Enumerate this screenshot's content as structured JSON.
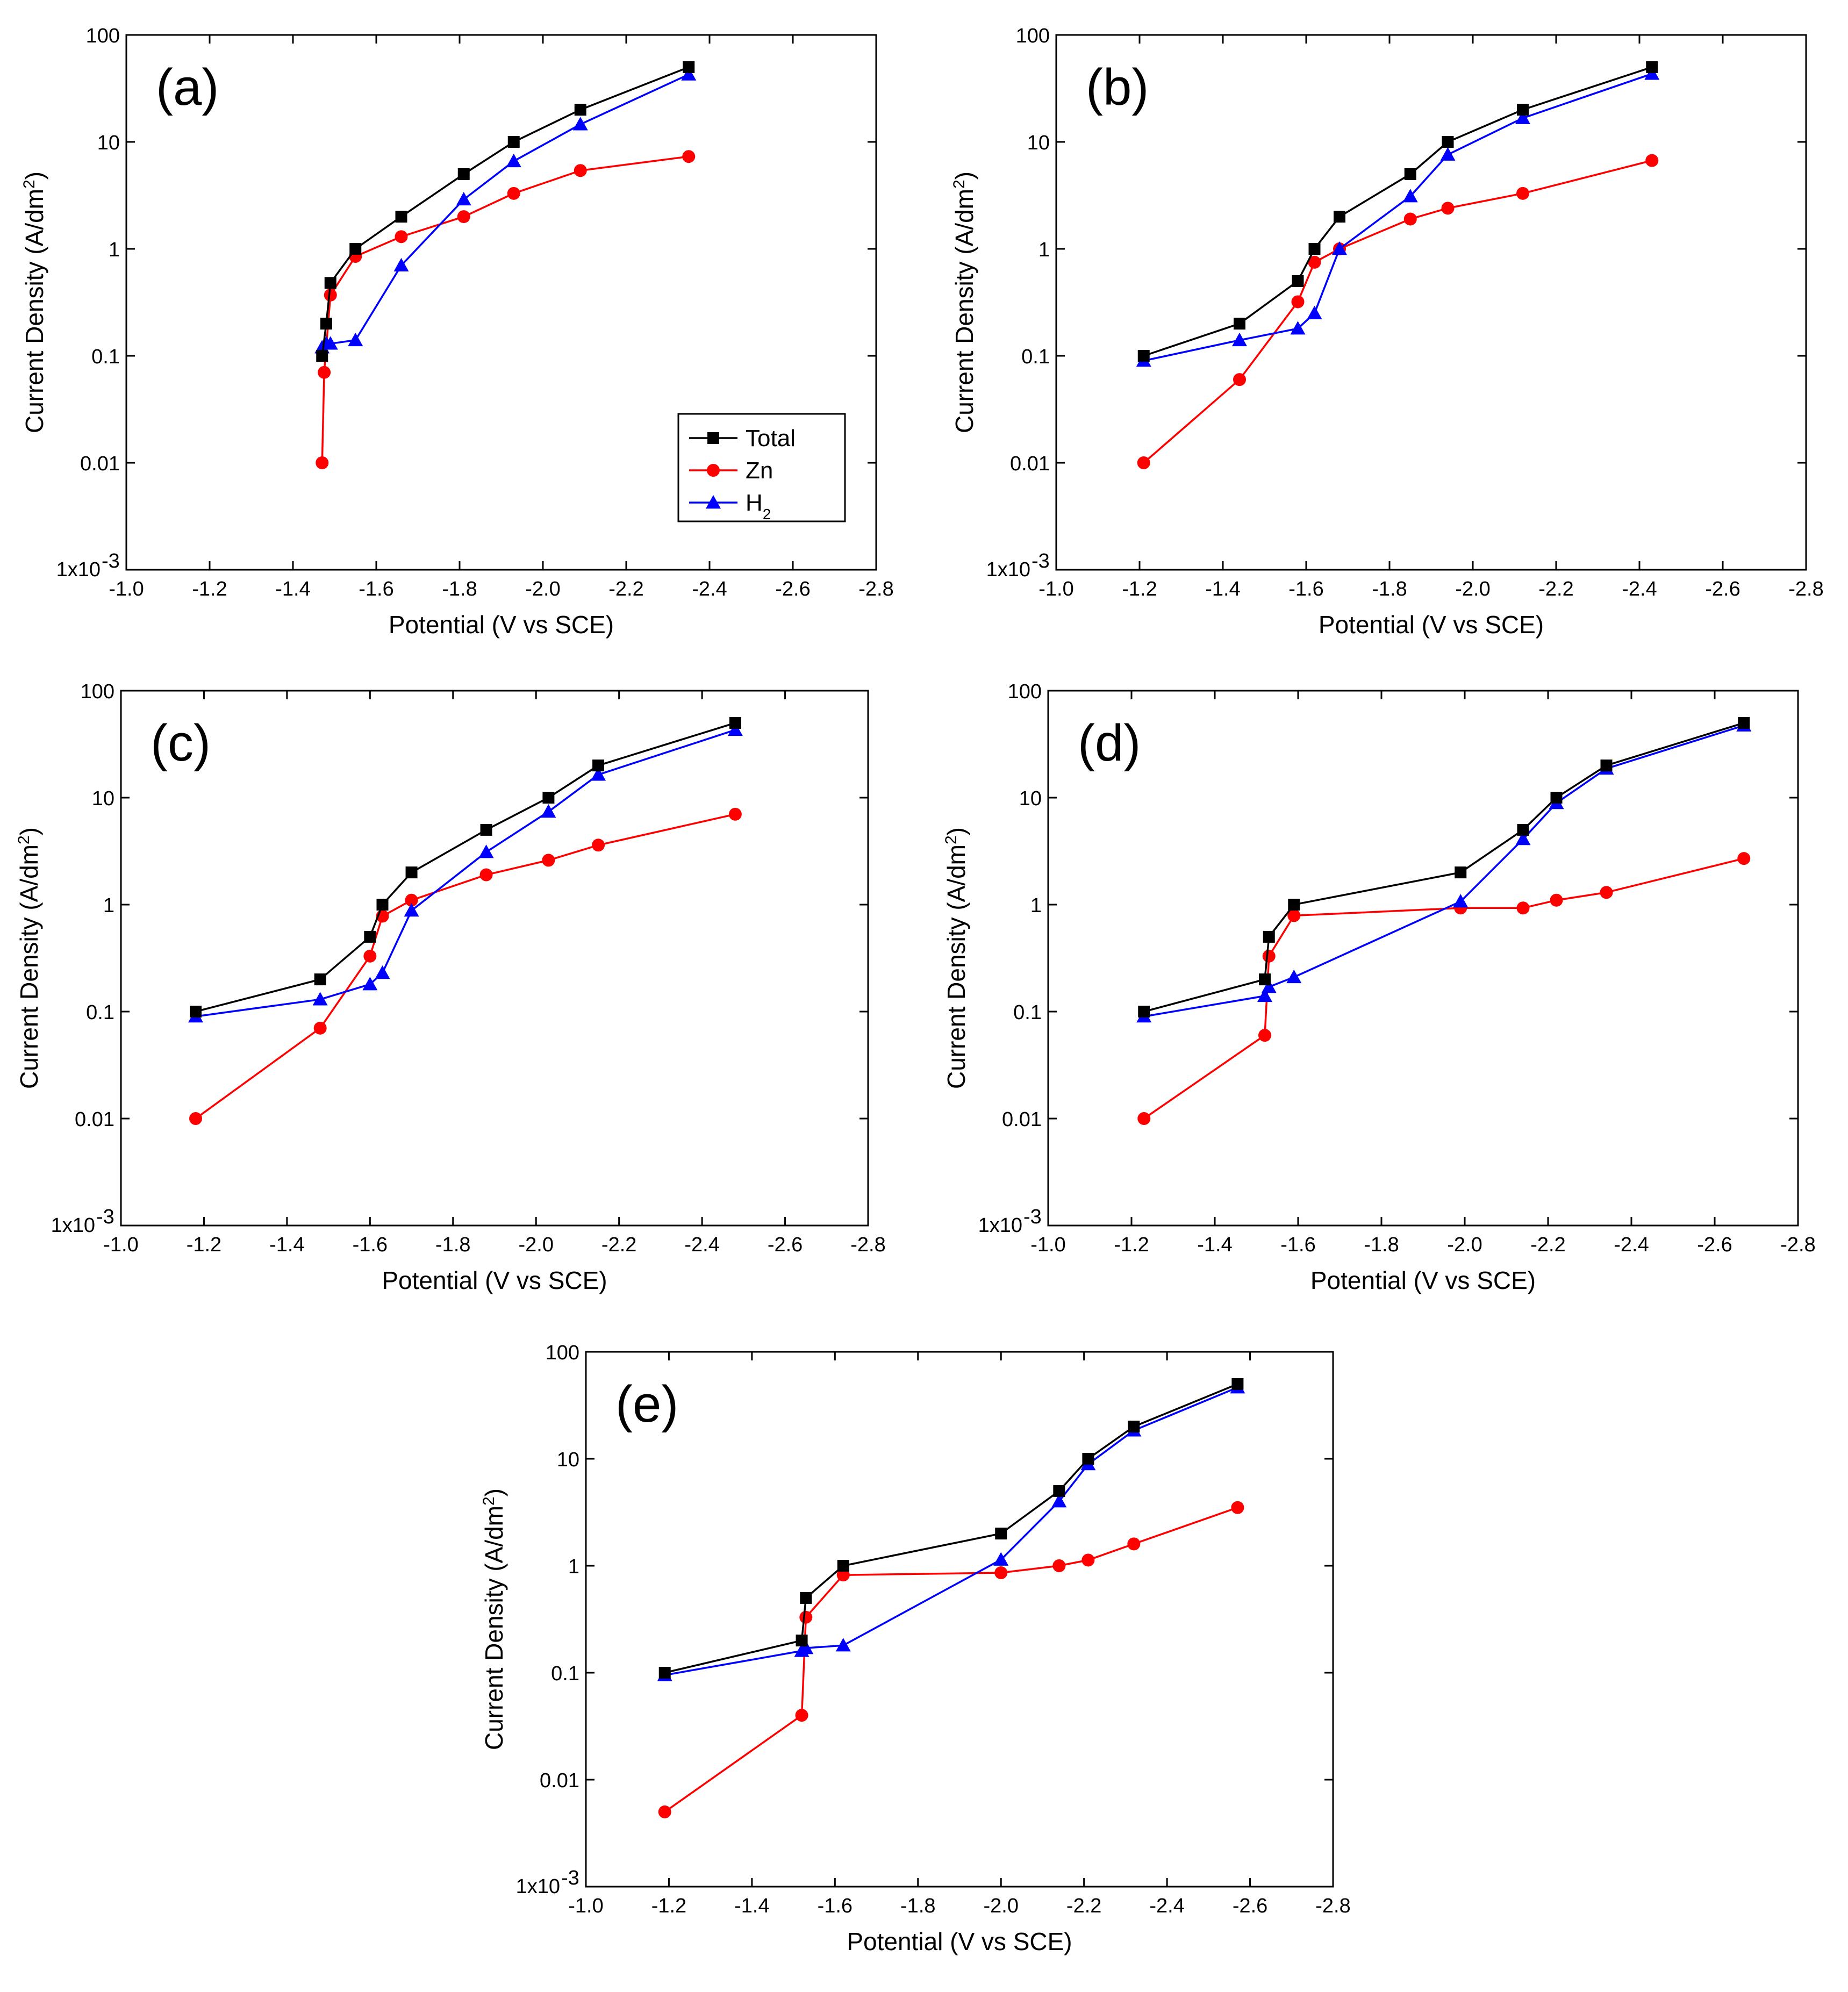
{
  "figure": {
    "legend": {
      "entries": [
        {
          "name": "Total",
          "color": "#000000",
          "marker": "square"
        },
        {
          "name": "Zn",
          "color": "#ff0000",
          "marker": "circle"
        },
        {
          "name": "H2",
          "label_main": "H",
          "label_sub": "2",
          "color": "#0000ff",
          "marker": "triangle"
        }
      ]
    }
  },
  "chart_data": [
    {
      "id": "a",
      "type": "line",
      "panel_label": "(a)",
      "xlabel": "Potential (V vs SCE)",
      "ylabel": "Current Density (A/dm",
      "ylabel_sup": "2",
      "ylabel_end": ")",
      "xlim": [
        -1.0,
        -2.8
      ],
      "ylim": [
        0.001,
        100
      ],
      "yscale": "log",
      "xticks": [
        "-1.0",
        "-1.2",
        "-1.4",
        "-1.6",
        "-1.8",
        "-2.0",
        "-2.2",
        "-2.4",
        "-2.6",
        "-2.8"
      ],
      "xtick_values": [
        -1.0,
        -1.2,
        -1.4,
        -1.6,
        -1.8,
        -2.0,
        -2.2,
        -2.4,
        -2.6,
        -2.8
      ],
      "yticks": [
        "1x10",
        "0.01",
        "0.1",
        "1",
        "10",
        "100"
      ],
      "ytick_first_sup": "-3",
      "ytick_values": [
        0.001,
        0.01,
        0.1,
        1,
        10,
        100
      ],
      "legend_shown": true,
      "series": [
        {
          "name": "Total",
          "x": [
            -1.47,
            -1.48,
            -1.49,
            -1.55,
            -1.66,
            -1.81,
            -1.93,
            -2.09,
            -2.35
          ],
          "y": [
            0.1,
            0.2,
            0.48,
            1,
            2,
            5,
            10,
            20,
            50
          ]
        },
        {
          "name": "Zn",
          "x": [
            -1.47,
            -1.475,
            -1.49,
            -1.55,
            -1.66,
            -1.81,
            -1.93,
            -2.09,
            -2.35
          ],
          "y": [
            0.01,
            0.07,
            0.37,
            0.85,
            1.3,
            2.0,
            3.3,
            5.4,
            7.3
          ]
        },
        {
          "name": "H2",
          "x": [
            -1.47,
            -1.48,
            -1.49,
            -1.55,
            -1.66,
            -1.81,
            -1.93,
            -2.09,
            -2.35
          ],
          "y": [
            0.12,
            0.13,
            0.13,
            0.14,
            0.7,
            2.9,
            6.6,
            14.6,
            42.7
          ]
        }
      ]
    },
    {
      "id": "b",
      "type": "line",
      "panel_label": "(b)",
      "xlabel": "Potential (V vs SCE)",
      "ylabel": "Current Density (A/dm",
      "ylabel_sup": "2",
      "ylabel_end": ")",
      "xlim": [
        -1.0,
        -2.8
      ],
      "ylim": [
        0.001,
        100
      ],
      "yscale": "log",
      "xticks": [
        "-1.0",
        "-1.2",
        "-1.4",
        "-1.6",
        "-1.8",
        "-2.0",
        "-2.2",
        "-2.4",
        "-2.6",
        "-2.8"
      ],
      "xtick_values": [
        -1.0,
        -1.2,
        -1.4,
        -1.6,
        -1.8,
        -2.0,
        -2.2,
        -2.4,
        -2.6,
        -2.8
      ],
      "yticks": [
        "1x10",
        "0.01",
        "0.1",
        "1",
        "10",
        "100"
      ],
      "ytick_first_sup": "-3",
      "ytick_values": [
        0.001,
        0.01,
        0.1,
        1,
        10,
        100
      ],
      "legend_shown": false,
      "series": [
        {
          "name": "Total",
          "x": [
            -1.21,
            -1.44,
            -1.58,
            -1.62,
            -1.68,
            -1.85,
            -1.94,
            -2.12,
            -2.43
          ],
          "y": [
            0.1,
            0.2,
            0.5,
            1,
            2,
            5,
            10,
            20,
            50
          ]
        },
        {
          "name": "Zn",
          "x": [
            -1.21,
            -1.44,
            -1.58,
            -1.62,
            -1.68,
            -1.85,
            -1.94,
            -2.12,
            -2.43
          ],
          "y": [
            0.01,
            0.06,
            0.32,
            0.75,
            1.0,
            1.9,
            2.4,
            3.3,
            6.7
          ]
        },
        {
          "name": "H2",
          "x": [
            -1.21,
            -1.44,
            -1.58,
            -1.62,
            -1.68,
            -1.85,
            -1.94,
            -2.12,
            -2.43
          ],
          "y": [
            0.09,
            0.14,
            0.18,
            0.25,
            1.0,
            3.1,
            7.6,
            16.7,
            43.3
          ]
        }
      ]
    },
    {
      "id": "c",
      "type": "line",
      "panel_label": "(c)",
      "xlabel": "Potential (V vs SCE)",
      "ylabel": "Current Density (A/dm",
      "ylabel_sup": "2",
      "ylabel_end": ")",
      "xlim": [
        -1.0,
        -2.8
      ],
      "ylim": [
        0.001,
        100
      ],
      "yscale": "log",
      "xticks": [
        "-1.0",
        "-1.2",
        "-1.4",
        "-1.6",
        "-1.8",
        "-2.0",
        "-2.2",
        "-2.4",
        "-2.6",
        "-2.8"
      ],
      "xtick_values": [
        -1.0,
        -1.2,
        -1.4,
        -1.6,
        -1.8,
        -2.0,
        -2.2,
        -2.4,
        -2.6,
        -2.8
      ],
      "yticks": [
        "1x10",
        "0.01",
        "0.1",
        "1",
        "10",
        "100"
      ],
      "ytick_first_sup": "-3",
      "ytick_values": [
        0.001,
        0.01,
        0.1,
        1,
        10,
        100
      ],
      "legend_shown": false,
      "series": [
        {
          "name": "Total",
          "x": [
            -1.18,
            -1.48,
            -1.6,
            -1.63,
            -1.7,
            -1.88,
            -2.03,
            -2.15,
            -2.48
          ],
          "y": [
            0.1,
            0.2,
            0.5,
            1,
            2,
            5,
            10,
            20,
            50
          ]
        },
        {
          "name": "Zn",
          "x": [
            -1.18,
            -1.48,
            -1.6,
            -1.63,
            -1.7,
            -1.88,
            -2.03,
            -2.15,
            -2.48
          ],
          "y": [
            0.01,
            0.07,
            0.33,
            0.78,
            1.1,
            1.9,
            2.6,
            3.6,
            7.0
          ]
        },
        {
          "name": "H2",
          "x": [
            -1.18,
            -1.48,
            -1.6,
            -1.63,
            -1.7,
            -1.88,
            -2.03,
            -2.15,
            -2.48
          ],
          "y": [
            0.09,
            0.13,
            0.18,
            0.23,
            0.88,
            3.1,
            7.4,
            16.4,
            43.0
          ]
        }
      ]
    },
    {
      "id": "d",
      "type": "line",
      "panel_label": "(d)",
      "xlabel": "Potential (V vs SCE)",
      "ylabel": "Current Density (A/dm",
      "ylabel_sup": "2",
      "ylabel_end": ")",
      "xlim": [
        -1.0,
        -2.8
      ],
      "ylim": [
        0.001,
        100
      ],
      "yscale": "log",
      "xticks": [
        "-1.0",
        "-1.2",
        "-1.4",
        "-1.6",
        "-1.8",
        "-2.0",
        "-2.2",
        "-2.4",
        "-2.6",
        "-2.8"
      ],
      "xtick_values": [
        -1.0,
        -1.2,
        -1.4,
        -1.6,
        -1.8,
        -2.0,
        -2.2,
        -2.4,
        -2.6,
        -2.8
      ],
      "yticks": [
        "1x10",
        "0.01",
        "0.1",
        "1",
        "10",
        "100"
      ],
      "ytick_first_sup": "-3",
      "ytick_values": [
        0.001,
        0.01,
        0.1,
        1,
        10,
        100
      ],
      "legend_shown": false,
      "series": [
        {
          "name": "Total",
          "x": [
            -1.23,
            -1.52,
            -1.53,
            -1.59,
            -1.99,
            -2.14,
            -2.22,
            -2.34,
            -2.67
          ],
          "y": [
            0.1,
            0.2,
            0.5,
            1,
            2,
            5,
            10,
            20,
            50
          ]
        },
        {
          "name": "Zn",
          "x": [
            -1.23,
            -1.52,
            -1.53,
            -1.59,
            -1.99,
            -2.14,
            -2.22,
            -2.34,
            -2.67
          ],
          "y": [
            0.01,
            0.06,
            0.33,
            0.79,
            0.93,
            0.93,
            1.1,
            1.3,
            2.7
          ]
        },
        {
          "name": "H2",
          "x": [
            -1.23,
            -1.52,
            -1.53,
            -1.59,
            -1.99,
            -2.14,
            -2.22,
            -2.34,
            -2.67
          ],
          "y": [
            0.09,
            0.14,
            0.17,
            0.21,
            1.07,
            4.1,
            8.9,
            18.7,
            47.3
          ]
        }
      ]
    },
    {
      "id": "e",
      "type": "line",
      "panel_label": "(e)",
      "xlabel": "Potential (V vs SCE)",
      "ylabel": "Current Density (A/dm",
      "ylabel_sup": "2",
      "ylabel_end": ")",
      "xlim": [
        -1.0,
        -2.8
      ],
      "ylim": [
        0.001,
        100
      ],
      "yscale": "log",
      "xticks": [
        "-1.0",
        "-1.2",
        "-1.4",
        "-1.6",
        "-1.8",
        "-2.0",
        "-2.2",
        "-2.4",
        "-2.6",
        "-2.8"
      ],
      "xtick_values": [
        -1.0,
        -1.2,
        -1.4,
        -1.6,
        -1.8,
        -2.0,
        -2.2,
        -2.4,
        -2.6,
        -2.8
      ],
      "yticks": [
        "1x10",
        "0.01",
        "0.1",
        "1",
        "10",
        "100"
      ],
      "ytick_first_sup": "-3",
      "ytick_values": [
        0.001,
        0.01,
        0.1,
        1,
        10,
        100
      ],
      "legend_shown": false,
      "series": [
        {
          "name": "Total",
          "x": [
            -1.19,
            -1.52,
            -1.53,
            -1.62,
            -2.0,
            -2.14,
            -2.21,
            -2.32,
            -2.57
          ],
          "y": [
            0.1,
            0.2,
            0.5,
            1,
            2,
            5,
            10,
            20,
            50
          ]
        },
        {
          "name": "Zn",
          "x": [
            -1.19,
            -1.52,
            -1.53,
            -1.62,
            -2.0,
            -2.14,
            -2.21,
            -2.32,
            -2.57
          ],
          "y": [
            0.005,
            0.04,
            0.33,
            0.82,
            0.86,
            1.0,
            1.13,
            1.6,
            3.5
          ]
        },
        {
          "name": "H2",
          "x": [
            -1.19,
            -1.52,
            -1.53,
            -1.62,
            -2.0,
            -2.14,
            -2.21,
            -2.32,
            -2.57
          ],
          "y": [
            0.095,
            0.16,
            0.17,
            0.18,
            1.14,
            4.0,
            8.9,
            18.4,
            46.5
          ]
        }
      ]
    }
  ]
}
